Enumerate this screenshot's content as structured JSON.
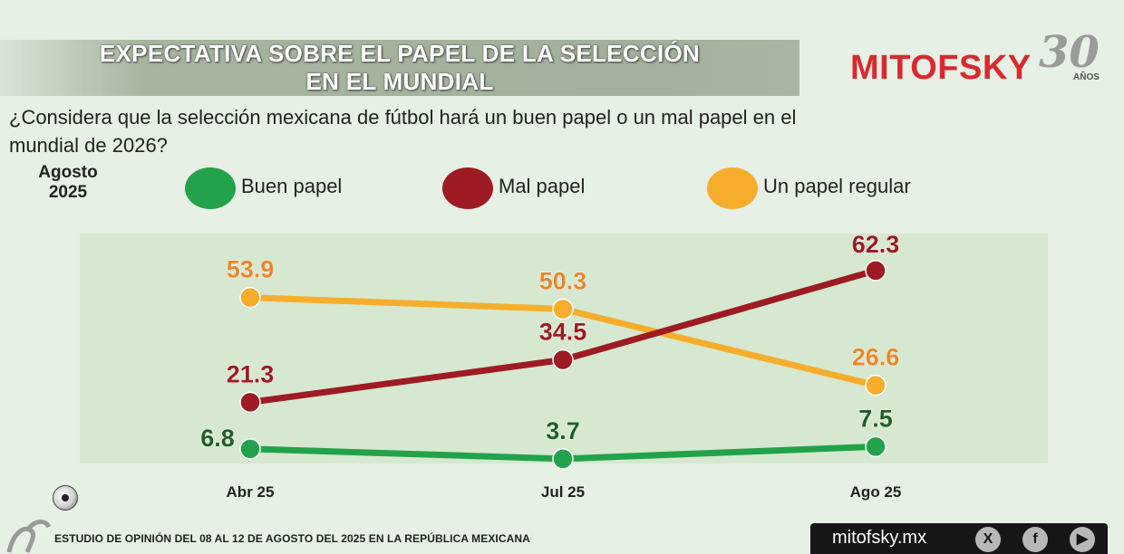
{
  "header": {
    "title_line1": "EXPECTATIVA SOBRE EL PAPEL DE LA SELECCIÓN",
    "title_line2": "EN EL MUNDIAL",
    "brand": "MITOFSKY",
    "brand_30": "30",
    "brand_anos": "AÑOS"
  },
  "question": "¿Considera que la selección mexicana de fútbol hará un buen papel o un mal papel en el mundial de 2026?",
  "period_line1": "Agosto",
  "period_line2": "2025",
  "colors": {
    "buen": "#22a24a",
    "mal": "#9e1b23",
    "regular": "#f6ad2c",
    "regular_label": "#e9862b"
  },
  "chart_data": {
    "type": "line",
    "categories": [
      "Abr 25",
      "Jul 25",
      "Ago 25"
    ],
    "series": [
      {
        "key": "regular",
        "name": "Un papel regular",
        "values": [
          53.9,
          50.3,
          26.6
        ]
      },
      {
        "key": "mal",
        "name": "Mal papel",
        "values": [
          21.3,
          34.5,
          62.3
        ]
      },
      {
        "key": "buen",
        "name": "Buen papel",
        "values": [
          6.8,
          3.7,
          7.5
        ]
      }
    ],
    "legend": "top",
    "grid": false
  },
  "footer": {
    "study": "ESTUDIO DE OPINIÓN DEL 08 AL 12 DE AGOSTO DEL 2025 EN LA REPÚBLICA MEXICANA",
    "site": "mitofsky.mx",
    "social_icons": [
      "x-icon",
      "facebook-icon",
      "youtube-icon"
    ]
  }
}
